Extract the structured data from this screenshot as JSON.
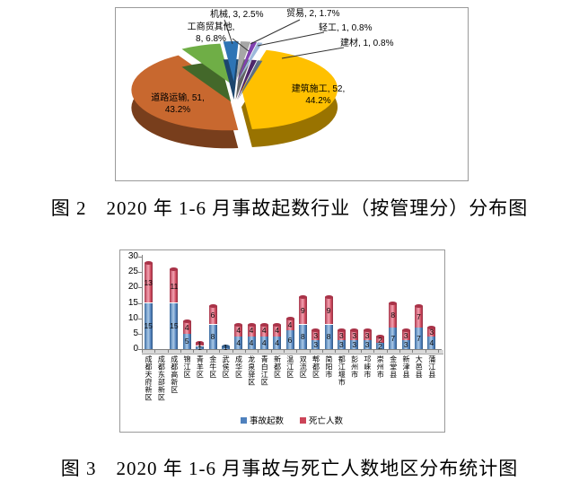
{
  "figure2": {
    "caption": "图 2　2020 年 1-6 月事故起数行业（按管理分）分布图"
  },
  "figure3": {
    "caption": "图 3　2020 年 1-6 月事故与死亡人数地区分布统计图"
  },
  "chart_data": [
    {
      "type": "pie",
      "style": "3d-exploded",
      "start_angle_deg": 15,
      "slices": [
        {
          "name": "建筑施工",
          "value": 52,
          "percent": "44.2%",
          "color": "#FFC000",
          "label": "建筑施工, 52,\n44.2%"
        },
        {
          "name": "道路运输",
          "value": 51,
          "percent": "43.2%",
          "color": "#C8682F",
          "label": "道路运输, 51,\n43.2%"
        },
        {
          "name": "工商贸其他",
          "value": 8,
          "percent": "6.8%",
          "color": "#6FAE46",
          "label": "工商贸其他,\n8, 6.8%"
        },
        {
          "name": "机械",
          "value": 3,
          "percent": "2.5%",
          "color": "#2E74B5",
          "label": "机械, 3, 2.5%"
        },
        {
          "name": "贸易",
          "value": 2,
          "percent": "1.7%",
          "color": "#A6A6A6",
          "label": "贸易, 2, 1.7%"
        },
        {
          "name": "轻工",
          "value": 1,
          "percent": "0.8%",
          "color": "#8040B0",
          "label": "轻工, 1, 0.8%"
        },
        {
          "name": "建材",
          "value": 1,
          "percent": "0.8%",
          "color": "#9DB9DC",
          "label": "建材, 1, 0.8%"
        }
      ]
    },
    {
      "type": "bar",
      "stacked": true,
      "categories": [
        "成都天府新区",
        "成都东部新区",
        "成都高新区",
        "锦江区",
        "青羊区",
        "金牛区",
        "武侯区",
        "成华区",
        "龙泉驿区",
        "青白江区",
        "新都区",
        "温江区",
        "双流区",
        "郫都区",
        "简阳市",
        "都江堰市",
        "彭州市",
        "邛崃市",
        "崇州市",
        "金堂县",
        "新津县",
        "大邑县",
        "蒲江县"
      ],
      "series": [
        {
          "name": "事故起数",
          "color": "#4F81BD",
          "values": [
            15,
            0,
            15,
            5,
            1,
            8,
            1,
            4,
            4,
            4,
            4,
            6,
            8,
            3,
            8,
            3,
            3,
            3,
            2,
            7,
            3,
            7,
            4
          ]
        },
        {
          "name": "死亡人数",
          "color": "#CC4458",
          "values": [
            13,
            0,
            11,
            4,
            1,
            6,
            0,
            4,
            4,
            4,
            4,
            4,
            9,
            3,
            9,
            3,
            3,
            3,
            2,
            8,
            3,
            7,
            3
          ]
        }
      ],
      "ylim": [
        0,
        30
      ],
      "yticks": [
        0,
        5,
        10,
        15,
        20,
        25,
        30
      ],
      "legend_position": "bottom"
    }
  ]
}
